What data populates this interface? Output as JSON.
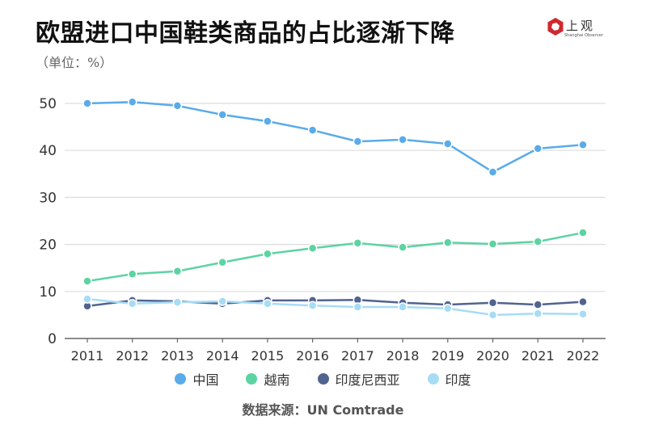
{
  "header": {
    "title": "欧盟进口中国鞋类商品的占比逐渐下降",
    "unit": "（单位：%）",
    "logo_text": "上观",
    "logo_subtext": "Shanghai Observer",
    "logo_color": "#d0282e"
  },
  "footer": {
    "source": "数据来源：UN Comtrade"
  },
  "chart_data": {
    "type": "line",
    "title": "欧盟进口中国鞋类商品的占比逐渐下降",
    "xlabel": "",
    "ylabel": "（单位：%）",
    "ylim": [
      0,
      50
    ],
    "yticks": [
      0,
      10,
      20,
      30,
      40,
      50
    ],
    "grid": true,
    "legend_position": "bottom",
    "categories": [
      "2011",
      "2012",
      "2013",
      "2014",
      "2015",
      "2016",
      "2017",
      "2018",
      "2019",
      "2020",
      "2021",
      "2022"
    ],
    "series": [
      {
        "name": "中国",
        "color": "#5aabe9",
        "values": [
          50.0,
          50.3,
          49.5,
          47.6,
          46.2,
          44.3,
          41.9,
          42.3,
          41.4,
          35.4,
          40.4,
          41.2
        ]
      },
      {
        "name": "越南",
        "color": "#5dd3a2",
        "values": [
          12.2,
          13.7,
          14.3,
          16.2,
          18.0,
          19.2,
          20.3,
          19.4,
          20.4,
          20.1,
          20.6,
          22.5
        ]
      },
      {
        "name": "印度尼西亚",
        "color": "#51648f",
        "values": [
          6.9,
          8.1,
          7.9,
          7.4,
          8.1,
          8.1,
          8.2,
          7.6,
          7.2,
          7.6,
          7.2,
          7.8
        ]
      },
      {
        "name": "印度",
        "color": "#a7dcf5",
        "values": [
          8.4,
          7.4,
          7.7,
          7.9,
          7.4,
          7.0,
          6.7,
          6.7,
          6.4,
          5.0,
          5.3,
          5.2
        ]
      }
    ]
  }
}
